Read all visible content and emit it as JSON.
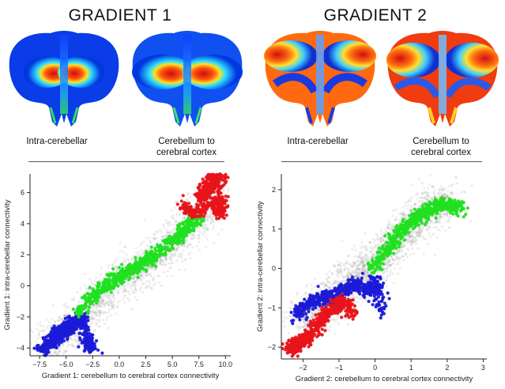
{
  "headings": [
    "GRADIENT 1",
    "GRADIENT 2"
  ],
  "map_captions": [
    [
      "Intra-cerebellar"
    ],
    [
      "Cerebellum to",
      "cerebral cortex"
    ],
    [
      "Intra-cerebellar"
    ],
    [
      "Cerebellum to",
      "cerebral cortex"
    ]
  ],
  "colors": {
    "red": "#e8141a",
    "green": "#20e020",
    "blue": "#1a1ad8",
    "gray": "#777777"
  },
  "chart_data": [
    {
      "type": "scatter",
      "title": "",
      "xlabel": "Gradient 1: cerebellum to cerebral cortex connectivity",
      "ylabel": "Gradient 1: intra-cerebellar connectivity",
      "xlim": [
        -8.4,
        10.5
      ],
      "ylim": [
        -4.5,
        7.2
      ],
      "xticks": [
        -7.5,
        -5.0,
        -2.5,
        0.0,
        2.5,
        5.0,
        7.5,
        10.0
      ],
      "xtick_labels": [
        "−7.5",
        "−5.0",
        "−2.5",
        "0.0",
        "2.5",
        "5.0",
        "7.5",
        "10.0"
      ],
      "yticks": [
        -4,
        -2,
        0,
        2,
        4,
        6
      ],
      "ytick_labels": [
        "−4",
        "−2",
        "0",
        "2",
        "4",
        "6"
      ],
      "grid": false,
      "legend": "none",
      "series": [
        {
          "color": "gray",
          "shape": "cloud along diagonal",
          "x": [
            -7.0,
            -5.0,
            -2.5,
            0.0,
            2.5,
            5.0,
            7.5,
            9.2
          ],
          "y": [
            -3.9,
            -3.0,
            -1.2,
            0.3,
            1.3,
            2.6,
            4.4,
            6.2
          ]
        },
        {
          "color": "blue",
          "x": [
            -7.4,
            -6.5,
            -6.0,
            -5.5,
            -5.0,
            -4.5,
            -4.0,
            -3.5,
            -3.0,
            -2.5
          ],
          "y": [
            -4.2,
            -3.7,
            -3.3,
            -3.0,
            -2.8,
            -2.5,
            -2.3,
            -2.0,
            -3.7,
            -3.9
          ]
        },
        {
          "color": "green",
          "x": [
            -4.0,
            -2.5,
            -1.0,
            0.0,
            1.0,
            2.5,
            4.0,
            5.5,
            6.5,
            7.5
          ],
          "y": [
            -1.8,
            -0.7,
            0.1,
            0.6,
            1.0,
            1.6,
            2.3,
            3.1,
            3.8,
            4.5
          ]
        },
        {
          "color": "red",
          "x": [
            7.5,
            8.0,
            8.5,
            9.0,
            9.3,
            9.5,
            9.5,
            7.0,
            6.0
          ],
          "y": [
            5.5,
            6.0,
            6.5,
            6.9,
            7.0,
            4.5,
            5.5,
            4.6,
            5.2
          ]
        }
      ]
    },
    {
      "type": "scatter",
      "title": "",
      "xlabel": "Gradient 2: cerebellum to cerebral cortex connectivity",
      "ylabel": "Gradient 2: intra-cerebellar connectivity",
      "xlim": [
        -2.6,
        3.1
      ],
      "ylim": [
        -2.3,
        2.4
      ],
      "xticks": [
        -2,
        -1,
        0,
        1,
        2,
        3
      ],
      "xtick_labels": [
        "−2",
        "−1",
        "0",
        "1",
        "2",
        "3"
      ],
      "yticks": [
        -2,
        -1,
        0,
        1,
        2
      ],
      "ytick_labels": [
        "−2",
        "−1",
        "0",
        "1",
        "2"
      ],
      "grid": false,
      "legend": "none",
      "series": [
        {
          "color": "gray",
          "shape": "cloud along diagonal",
          "x": [
            -2.0,
            -1.5,
            -1.0,
            -0.5,
            0.0,
            0.5,
            1.0,
            1.5,
            2.0
          ],
          "y": [
            -1.3,
            -1.0,
            -0.6,
            -0.2,
            0.1,
            0.6,
            1.1,
            1.5,
            1.8
          ]
        },
        {
          "color": "blue",
          "x": [
            -2.2,
            -1.9,
            -1.5,
            -1.2,
            -0.8,
            -0.5,
            -0.2,
            0.0,
            0.2
          ],
          "y": [
            -1.2,
            -0.9,
            -0.8,
            -0.7,
            -0.5,
            -0.4,
            -0.6,
            -0.3,
            -1.1
          ]
        },
        {
          "color": "green",
          "x": [
            -0.1,
            0.3,
            0.6,
            0.9,
            1.2,
            1.5,
            1.8,
            2.1,
            2.4
          ],
          "y": [
            0.0,
            0.4,
            0.8,
            1.1,
            1.3,
            1.5,
            1.6,
            1.6,
            1.5
          ]
        },
        {
          "color": "red",
          "x": [
            -2.4,
            -2.2,
            -2.0,
            -1.8,
            -1.5,
            -1.2,
            -0.9,
            -0.6
          ],
          "y": [
            -2.1,
            -1.95,
            -1.85,
            -1.7,
            -1.3,
            -1.0,
            -0.8,
            -1.2
          ]
        }
      ]
    }
  ]
}
